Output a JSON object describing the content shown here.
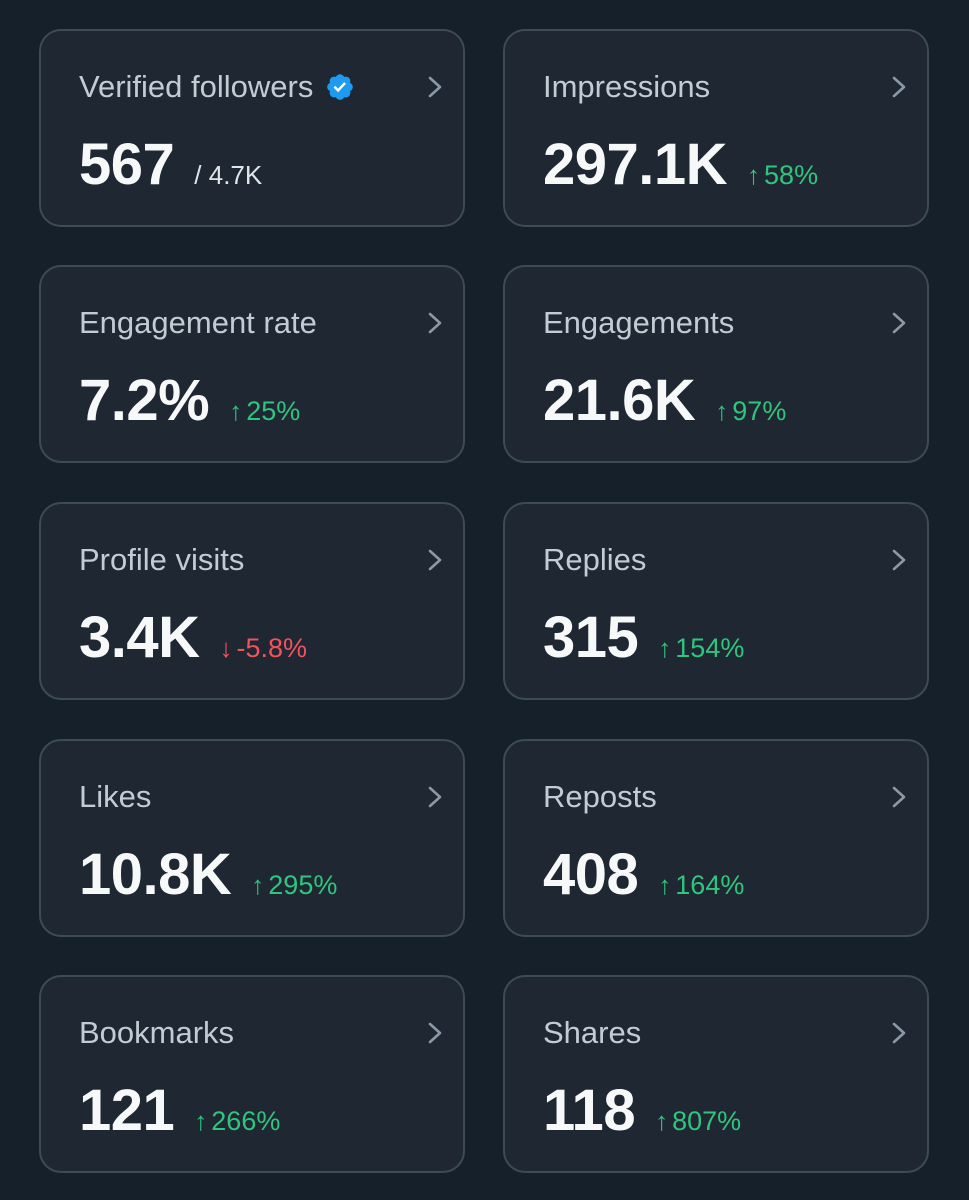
{
  "cards": [
    {
      "label": "Verified followers",
      "value": "567",
      "sub": "/ 4.7K",
      "verified": true
    },
    {
      "label": "Impressions",
      "value": "297.1K",
      "delta_arrow": "↑",
      "delta": "58%",
      "trend": "up"
    },
    {
      "label": "Engagement rate",
      "value": "7.2%",
      "delta_arrow": "↑",
      "delta": "25%",
      "trend": "up"
    },
    {
      "label": "Engagements",
      "value": "21.6K",
      "delta_arrow": "↑",
      "delta": "97%",
      "trend": "up"
    },
    {
      "label": "Profile visits",
      "value": "3.4K",
      "delta_arrow": "↓",
      "delta": "-5.8%",
      "trend": "down"
    },
    {
      "label": "Replies",
      "value": "315",
      "delta_arrow": "↑",
      "delta": "154%",
      "trend": "up"
    },
    {
      "label": "Likes",
      "value": "10.8K",
      "delta_arrow": "↑",
      "delta": "295%",
      "trend": "up"
    },
    {
      "label": "Reposts",
      "value": "408",
      "delta_arrow": "↑",
      "delta": "164%",
      "trend": "up"
    },
    {
      "label": "Bookmarks",
      "value": "121",
      "delta_arrow": "↑",
      "delta": "266%",
      "trend": "up"
    },
    {
      "label": "Shares",
      "value": "118",
      "delta_arrow": "↑",
      "delta": "807%",
      "trend": "up"
    }
  ],
  "colors": {
    "background": "#15202b",
    "card": "#1e2732",
    "border": "#3d4a57",
    "up": "#2fc57d",
    "down": "#f3525c",
    "verified": "#1d9bf0"
  },
  "icons": {
    "chevron": "chevron-right-icon",
    "verified": "verified-badge-icon"
  }
}
